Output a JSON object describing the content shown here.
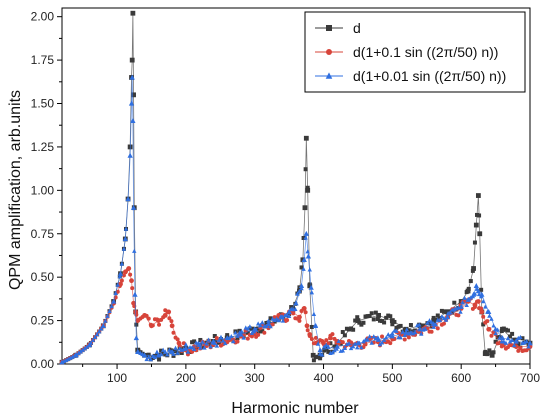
{
  "chart_data": {
    "type": "scatter",
    "xlabel": "Harmonic number",
    "ylabel": "QPM amplification, arb.units",
    "xlim": [
      20,
      700
    ],
    "ylim": [
      0,
      2.05
    ],
    "x_ticks": [
      "100",
      "200",
      "300",
      "400",
      "500",
      "600",
      "700"
    ],
    "y_ticks": [
      "0.00",
      "0.25",
      "0.50",
      "0.75",
      "1.00",
      "1.25",
      "1.50",
      "1.75",
      "2.00"
    ],
    "x_tick_values": [
      100,
      200,
      300,
      400,
      500,
      600,
      700
    ],
    "y_tick_values": [
      0,
      0.25,
      0.5,
      0.75,
      1.0,
      1.25,
      1.5,
      1.75,
      2.0
    ],
    "legend_position": "top-right",
    "grid": false,
    "series": [
      {
        "name": "d",
        "color": "#3a3a3a",
        "marker": "square",
        "x": [
          20,
          40,
          60,
          80,
          95,
          105,
          112,
          116,
          119,
          121,
          122,
          123,
          124,
          125,
          127,
          130,
          140,
          160,
          180,
          200,
          220,
          240,
          260,
          280,
          300,
          320,
          340,
          355,
          365,
          370,
          373,
          375,
          377,
          380,
          385,
          395,
          420,
          450,
          480,
          500,
          520,
          540,
          560,
          580,
          600,
          610,
          618,
          622,
          625,
          627,
          630,
          635,
          645,
          660,
          680,
          700
        ],
        "y": [
          0.01,
          0.05,
          0.11,
          0.22,
          0.36,
          0.52,
          0.72,
          0.95,
          1.25,
          1.65,
          1.75,
          2.02,
          1.55,
          0.9,
          0.3,
          0.08,
          0.05,
          0.05,
          0.07,
          0.09,
          0.11,
          0.13,
          0.15,
          0.17,
          0.2,
          0.23,
          0.27,
          0.32,
          0.42,
          0.6,
          0.9,
          1.3,
          1.0,
          0.45,
          0.05,
          0.05,
          0.12,
          0.25,
          0.28,
          0.25,
          0.2,
          0.22,
          0.25,
          0.3,
          0.36,
          0.42,
          0.55,
          0.8,
          0.97,
          0.75,
          0.3,
          0.06,
          0.05,
          0.2,
          0.12,
          0.12
        ]
      },
      {
        "name": "d(1+0.1 sin ((2π/50) n))",
        "color": "#d7443a",
        "marker": "circle",
        "x": [
          20,
          40,
          60,
          80,
          95,
          105,
          112,
          117,
          121,
          124,
          127,
          130,
          140,
          150,
          160,
          170,
          175,
          180,
          190,
          200,
          220,
          240,
          260,
          280,
          300,
          320,
          335,
          345,
          355,
          365,
          372,
          376,
          380,
          390,
          400,
          410,
          420,
          440,
          460,
          480,
          500,
          520,
          540,
          560,
          580,
          600,
          610,
          620,
          625,
          630,
          640,
          660,
          680,
          700
        ],
        "y": [
          0.01,
          0.05,
          0.11,
          0.22,
          0.35,
          0.46,
          0.53,
          0.55,
          0.48,
          0.35,
          0.3,
          0.25,
          0.28,
          0.22,
          0.25,
          0.28,
          0.3,
          0.22,
          0.12,
          0.08,
          0.1,
          0.12,
          0.14,
          0.16,
          0.18,
          0.22,
          0.28,
          0.25,
          0.3,
          0.27,
          0.32,
          0.22,
          0.17,
          0.12,
          0.12,
          0.15,
          0.13,
          0.11,
          0.12,
          0.13,
          0.15,
          0.17,
          0.19,
          0.22,
          0.27,
          0.32,
          0.36,
          0.34,
          0.36,
          0.3,
          0.2,
          0.12,
          0.1,
          0.1
        ]
      },
      {
        "name": "d(1+0.01 sin ((2π/50) n))",
        "color": "#2f6fe0",
        "marker": "triangle",
        "x": [
          20,
          40,
          60,
          80,
          95,
          105,
          112,
          116,
          119,
          121,
          122,
          123,
          124,
          126,
          128,
          130,
          140,
          160,
          180,
          200,
          220,
          240,
          260,
          280,
          300,
          320,
          340,
          350,
          360,
          368,
          372,
          375,
          378,
          382,
          388,
          395,
          420,
          450,
          480,
          500,
          520,
          540,
          560,
          580,
          600,
          610,
          618,
          622,
          625,
          630,
          640,
          650,
          660,
          680,
          700
        ],
        "y": [
          0.01,
          0.05,
          0.11,
          0.22,
          0.36,
          0.52,
          0.72,
          0.95,
          1.2,
          1.5,
          1.65,
          1.4,
          0.9,
          0.4,
          0.15,
          0.07,
          0.05,
          0.05,
          0.07,
          0.09,
          0.11,
          0.13,
          0.15,
          0.17,
          0.2,
          0.23,
          0.27,
          0.3,
          0.35,
          0.45,
          0.6,
          0.75,
          0.62,
          0.44,
          0.22,
          0.08,
          0.1,
          0.12,
          0.14,
          0.16,
          0.18,
          0.2,
          0.23,
          0.27,
          0.33,
          0.37,
          0.4,
          0.45,
          0.42,
          0.4,
          0.3,
          0.2,
          0.15,
          0.13,
          0.12
        ]
      }
    ]
  }
}
